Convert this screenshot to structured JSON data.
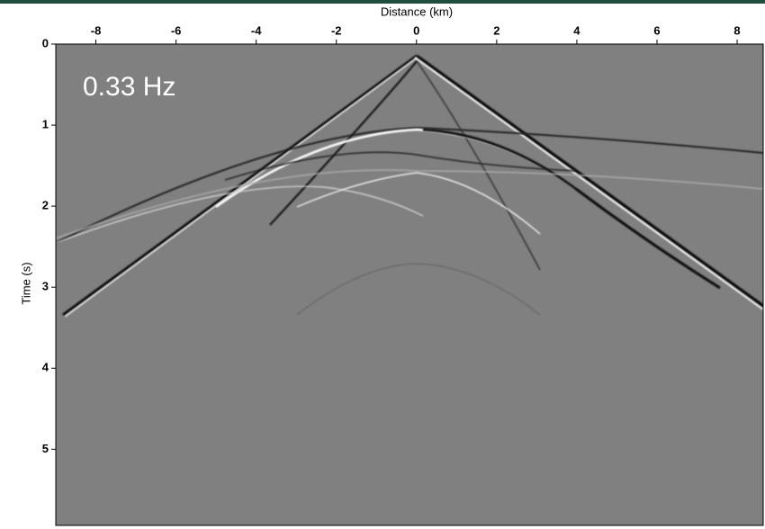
{
  "chart_data": {
    "type": "seismic-image",
    "x_label": "Distance (km)",
    "y_label": "Time (s)",
    "annotation": "0.33 Hz",
    "xlim": [
      -9,
      8.65
    ],
    "xticks": [
      -8,
      -6,
      -4,
      -2,
      0,
      2,
      4,
      6,
      8
    ],
    "ylim": [
      0,
      5.94
    ],
    "yticks": [
      0,
      1,
      2,
      3,
      4,
      5
    ],
    "y_inverted": true,
    "background": "#808080"
  }
}
